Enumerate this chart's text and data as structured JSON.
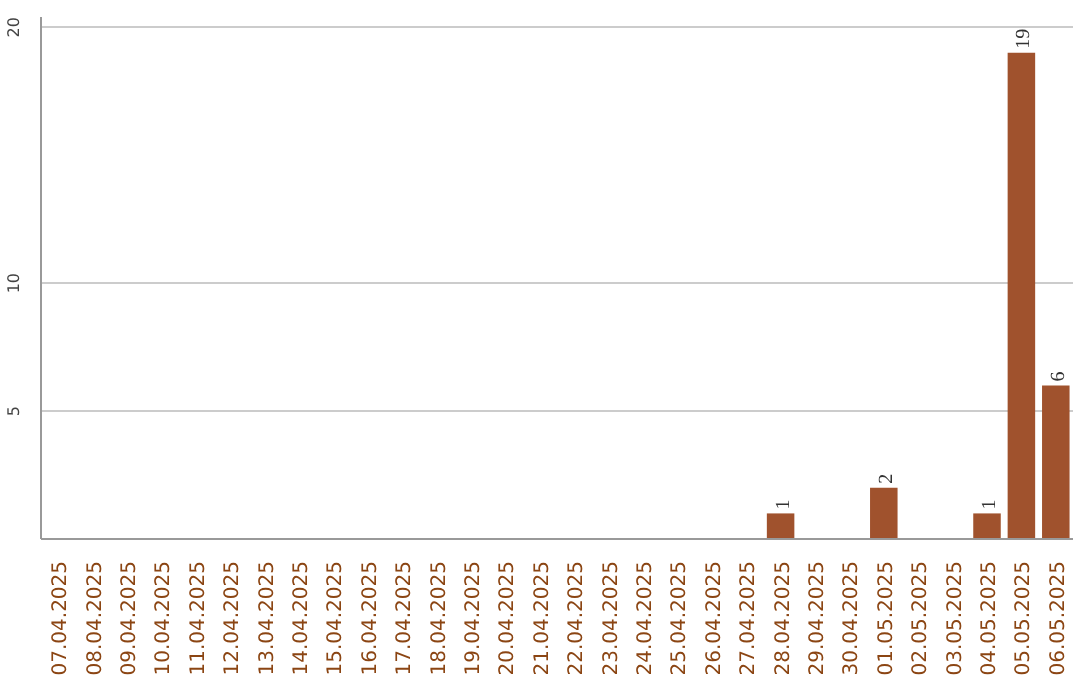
{
  "chart_data": {
    "type": "bar",
    "categories": [
      "07.04.2025",
      "08.04.2025",
      "09.04.2025",
      "10.04.2025",
      "11.04.2025",
      "12.04.2025",
      "13.04.2025",
      "14.04.2025",
      "15.04.2025",
      "16.04.2025",
      "17.04.2025",
      "18.04.2025",
      "19.04.2025",
      "20.04.2025",
      "21.04.2025",
      "22.04.2025",
      "23.04.2025",
      "24.04.2025",
      "25.04.2025",
      "26.04.2025",
      "27.04.2025",
      "28.04.2025",
      "29.04.2025",
      "30.04.2025",
      "01.05.2025",
      "02.05.2025",
      "03.05.2025",
      "04.05.2025",
      "05.05.2025",
      "06.05.2025"
    ],
    "values": [
      0,
      0,
      0,
      0,
      0,
      0,
      0,
      0,
      0,
      0,
      0,
      0,
      0,
      0,
      0,
      0,
      0,
      0,
      0,
      0,
      0,
      1,
      0,
      0,
      2,
      0,
      0,
      1,
      19,
      6
    ],
    "value_labels": [
      null,
      null,
      null,
      null,
      null,
      null,
      null,
      null,
      null,
      null,
      null,
      null,
      null,
      null,
      null,
      null,
      null,
      null,
      null,
      null,
      null,
      "1",
      null,
      null,
      "2",
      null,
      null,
      "1",
      "19",
      "6"
    ],
    "color": "#a0522d",
    "ylim": [
      0,
      20.4
    ],
    "yticks": [
      5,
      10,
      20
    ],
    "grid": "y"
  }
}
